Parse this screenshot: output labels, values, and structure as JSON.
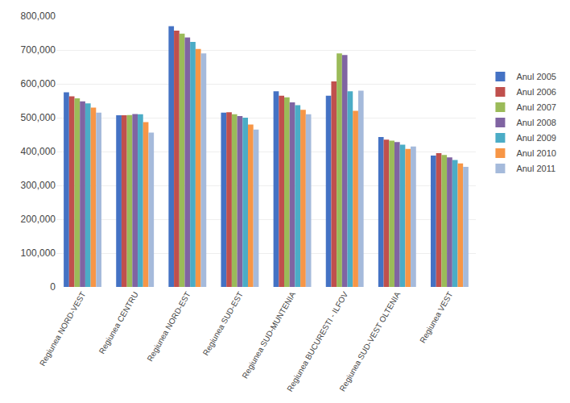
{
  "chart_data": {
    "type": "bar",
    "categories": [
      "Regiunea NORD-VEST",
      "Regiunea CENTRU",
      "Regiunea NORD-EST",
      "Regiunea SUD-EST",
      "Regiunea SUD-MUNTENIA",
      "Regiunea BUCURESTI - ILFOV",
      "Regiunea SUD-VEST OLTENIA",
      "Regiunea VEST"
    ],
    "series": [
      {
        "name": "Anul 2005",
        "color": "#4472C4",
        "values": [
          575000,
          507000,
          770000,
          515000,
          578000,
          565000,
          443000,
          388000
        ]
      },
      {
        "name": "Anul 2006",
        "color": "#C0504D",
        "values": [
          563000,
          507000,
          757000,
          516000,
          565000,
          607000,
          435000,
          395000
        ]
      },
      {
        "name": "Anul 2007",
        "color": "#9BBB59",
        "values": [
          557000,
          508000,
          748000,
          510000,
          560000,
          690000,
          432000,
          390000
        ]
      },
      {
        "name": "Anul 2008",
        "color": "#8064A2",
        "values": [
          548000,
          511000,
          737000,
          505000,
          545000,
          685000,
          428000,
          383000
        ]
      },
      {
        "name": "Anul 2009",
        "color": "#4BACC6",
        "values": [
          542000,
          510000,
          724000,
          500000,
          537000,
          578000,
          420000,
          375000
        ]
      },
      {
        "name": "Anul 2010",
        "color": "#F79646",
        "values": [
          530000,
          487000,
          703000,
          480000,
          523000,
          520000,
          408000,
          365000
        ]
      },
      {
        "name": "Anul 2011",
        "color": "#A5BADB",
        "values": [
          515000,
          456000,
          690000,
          465000,
          510000,
          580000,
          415000,
          355000
        ]
      }
    ],
    "ylim": [
      0,
      800000
    ],
    "yticks": [
      0,
      {
        "value": 100000,
        "label": "100,000"
      },
      {
        "value": 200000,
        "label": "200,000"
      },
      {
        "value": 300000,
        "label": "300,000"
      },
      {
        "value": 400000,
        "label": "400,000"
      },
      {
        "value": 500000,
        "label": "500,000"
      },
      {
        "value": 600000,
        "label": "600,000"
      },
      {
        "value": 700000,
        "label": "700,000"
      },
      {
        "value": 800000,
        "label": "800,000"
      }
    ],
    "grid": true,
    "legend": "right"
  }
}
